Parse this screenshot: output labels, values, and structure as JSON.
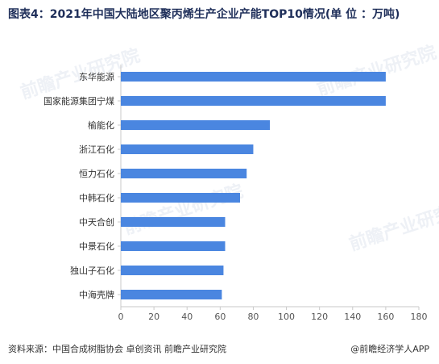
{
  "title": "图表4：2021年中国大陆地区聚丙烯生产企业产能TOP10情况(单 位 ：万吨)",
  "source": "资料来源：中国合成树脂协会 卓创资讯 前瞻产业研究院",
  "brand": "@前瞻经济学人APP",
  "watermark": "前瞻产业研究院",
  "colors": {
    "bar": "#4a86e0",
    "axis": "#c9c9c9",
    "title": "#1f2f5a"
  },
  "chart_data": {
    "type": "bar",
    "orientation": "horizontal",
    "categories": [
      "东华能源",
      "国家能源集团宁煤",
      "榆能化",
      "浙江石化",
      "恒力石化",
      "中韩石化",
      "中天合创",
      "中景石化",
      "独山子石化",
      "中海壳牌"
    ],
    "values": [
      160,
      160,
      90,
      80,
      76,
      72,
      63,
      63,
      62,
      61
    ],
    "xlim": [
      0,
      180
    ],
    "xticks": [
      0,
      20,
      40,
      60,
      80,
      100,
      120,
      140,
      160,
      180
    ],
    "xlabel": "",
    "ylabel": "",
    "grid": false,
    "legend": "none"
  }
}
